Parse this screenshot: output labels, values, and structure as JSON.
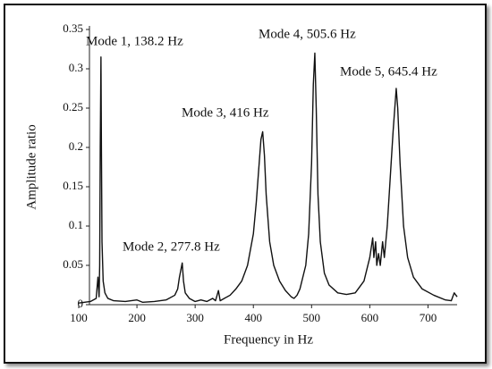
{
  "chart_data": {
    "type": "line",
    "x_label": "Frequency in Hz",
    "y_label": "Amplitude ratio",
    "annotations": [
      "Mode 1, 138.2 Hz",
      "Mode 2, 277.8 Hz",
      "Mode 3, 416 Hz",
      "Mode 4, 505.6 Hz",
      "Mode 5, 645.4 Hz"
    ],
    "xlim": [
      100,
      750
    ],
    "xticks": [
      100,
      200,
      300,
      400,
      500,
      600,
      700
    ],
    "ylim": [
      0,
      0.35
    ],
    "yticks": [
      0,
      0.05,
      0.1,
      0.15,
      0.2,
      0.25,
      0.3,
      0.35
    ],
    "grid": false,
    "series": [
      {
        "name": "Amplitude ratio",
        "color": "#111111",
        "x": [
          100,
          110,
          120,
          130,
          133,
          135,
          136,
          137,
          138.2,
          139,
          140,
          142,
          145,
          150,
          160,
          180,
          200,
          210,
          230,
          250,
          265,
          270,
          273,
          277.8,
          280,
          283,
          290,
          300,
          310,
          320,
          330,
          335,
          340,
          343,
          350,
          360,
          370,
          380,
          390,
          400,
          405,
          410,
          413,
          416,
          419,
          422,
          428,
          435,
          445,
          455,
          465,
          470,
          475,
          480,
          490,
          495,
          500,
          503,
          505.6,
          508,
          511,
          515,
          522,
          530,
          545,
          560,
          575,
          590,
          600,
          605,
          607,
          610,
          612,
          615,
          618,
          622,
          625,
          630,
          635,
          640,
          645.4,
          648,
          652,
          658,
          665,
          675,
          690,
          710,
          730,
          740,
          745,
          750
        ],
        "values": [
          0.002,
          0.003,
          0.004,
          0.008,
          0.035,
          0.01,
          0.05,
          0.2,
          0.315,
          0.2,
          0.08,
          0.03,
          0.015,
          0.008,
          0.005,
          0.004,
          0.006,
          0.003,
          0.004,
          0.006,
          0.012,
          0.02,
          0.035,
          0.053,
          0.03,
          0.015,
          0.008,
          0.004,
          0.006,
          0.004,
          0.008,
          0.005,
          0.018,
          0.005,
          0.008,
          0.012,
          0.02,
          0.03,
          0.05,
          0.09,
          0.13,
          0.18,
          0.21,
          0.22,
          0.19,
          0.14,
          0.08,
          0.05,
          0.03,
          0.018,
          0.01,
          0.008,
          0.012,
          0.02,
          0.05,
          0.09,
          0.18,
          0.28,
          0.32,
          0.25,
          0.14,
          0.08,
          0.04,
          0.025,
          0.015,
          0.013,
          0.015,
          0.03,
          0.06,
          0.085,
          0.06,
          0.08,
          0.05,
          0.065,
          0.05,
          0.08,
          0.06,
          0.1,
          0.16,
          0.22,
          0.275,
          0.25,
          0.18,
          0.1,
          0.06,
          0.035,
          0.02,
          0.012,
          0.006,
          0.005,
          0.015,
          0.01
        ]
      }
    ]
  }
}
